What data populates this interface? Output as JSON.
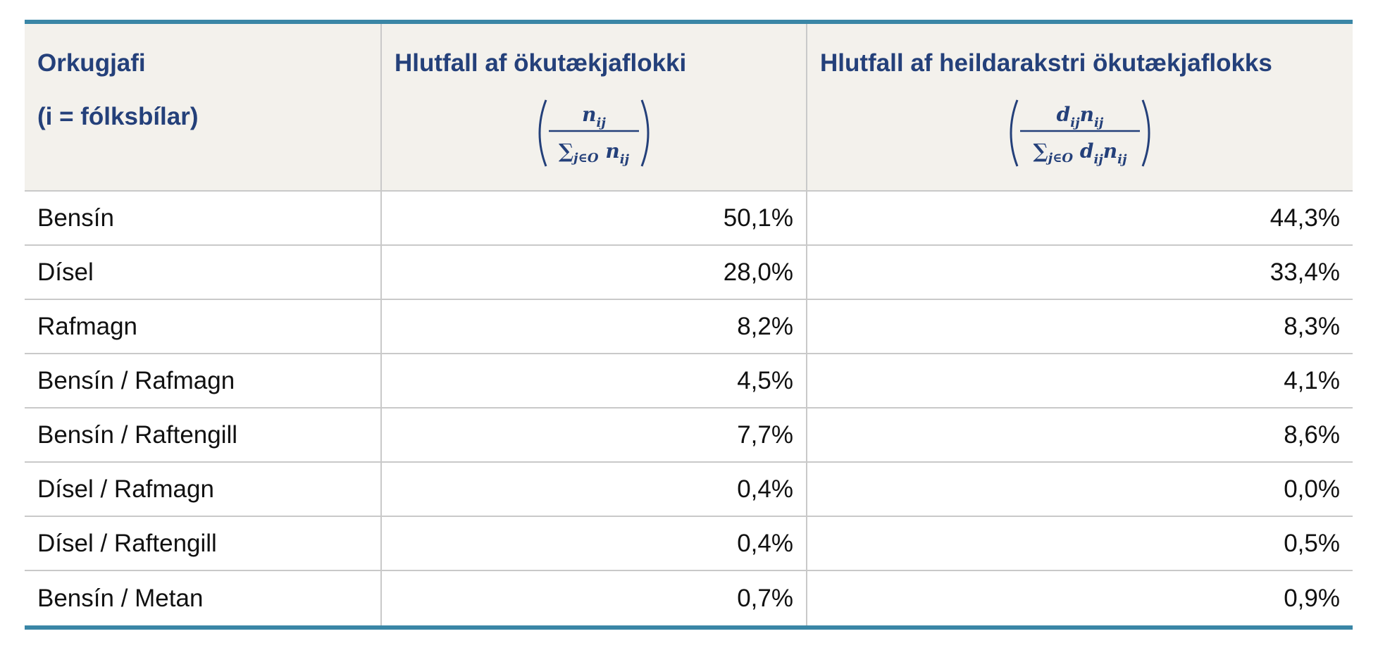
{
  "table": {
    "headers": {
      "col1_line1": "Orkugjafi",
      "col1_line2": "(i = fólksbílar)",
      "col2": "Hlutfall af ökutækjaflokki",
      "col3": "Hlutfall af heildarakstri ökutækjaflokks"
    },
    "formulas": {
      "col2_numerator": "n_ij",
      "col2_denominator": "∑_{j∈O} n_ij",
      "col3_numerator": "d_ij n_ij",
      "col3_denominator": "∑_{j∈O} d_ij n_ij"
    },
    "rows": [
      {
        "fuel": "Bensín",
        "share_of_category": "50,1%",
        "share_of_mileage": "44,3%"
      },
      {
        "fuel": "Dísel",
        "share_of_category": "28,0%",
        "share_of_mileage": "33,4%"
      },
      {
        "fuel": "Rafmagn",
        "share_of_category": "8,2%",
        "share_of_mileage": "8,3%"
      },
      {
        "fuel": "Bensín / Rafmagn",
        "share_of_category": "4,5%",
        "share_of_mileage": "4,1%"
      },
      {
        "fuel": "Bensín / Raftengill",
        "share_of_category": "7,7%",
        "share_of_mileage": "8,6%"
      },
      {
        "fuel": "Dísel / Rafmagn",
        "share_of_category": "0,4%",
        "share_of_mileage": "0,0%"
      },
      {
        "fuel": "Dísel / Raftengill",
        "share_of_category": "0,4%",
        "share_of_mileage": "0,5%"
      },
      {
        "fuel": "Bensín / Metan",
        "share_of_category": "0,7%",
        "share_of_mileage": "0,9%"
      }
    ]
  }
}
